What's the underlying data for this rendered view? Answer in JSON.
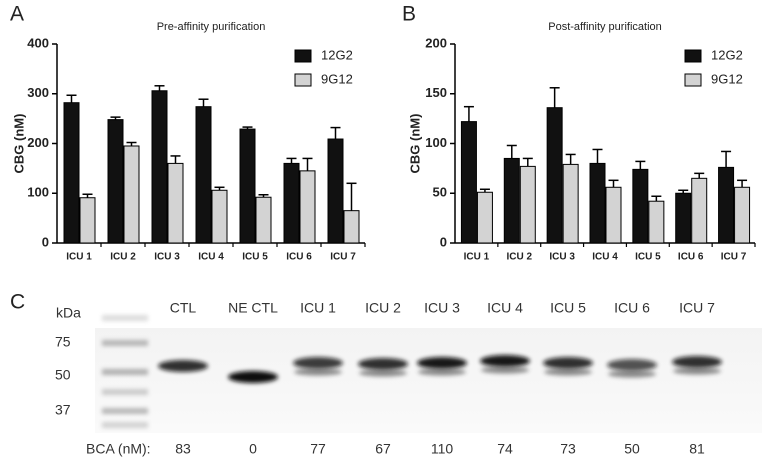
{
  "chart_data": [
    {
      "type": "bar",
      "panel": "A",
      "title": "Pre-affinity purification",
      "y_label": "CBG (nM)",
      "categories": [
        "ICU 1",
        "ICU 2",
        "ICU 3",
        "ICU 4",
        "ICU 5",
        "ICU 6",
        "ICU 7"
      ],
      "series": [
        {
          "name": "12G2",
          "color": "#111111",
          "values": [
            282,
            248,
            306,
            274,
            229,
            160,
            209
          ],
          "errors": [
            15,
            5,
            10,
            15,
            4,
            10,
            23
          ]
        },
        {
          "name": "9G12",
          "color": "#d3d3d3",
          "values": [
            91,
            195,
            160,
            106,
            92,
            145,
            65
          ],
          "errors": [
            7,
            7,
            15,
            6,
            5,
            25,
            55
          ]
        }
      ],
      "ylim": [
        0,
        400
      ],
      "yticks": [
        0,
        100,
        200,
        300,
        400
      ],
      "legend": "upper right"
    },
    {
      "type": "bar",
      "panel": "B",
      "title": "Post-affinity purification",
      "y_label": "CBG (nM)",
      "categories": [
        "ICU 1",
        "ICU 2",
        "ICU 3",
        "ICU 4",
        "ICU 5",
        "ICU 6",
        "ICU 7"
      ],
      "series": [
        {
          "name": "12G2",
          "color": "#111111",
          "values": [
            122,
            85,
            136,
            80,
            74,
            50,
            76
          ],
          "errors": [
            15,
            13,
            20,
            14,
            8,
            3,
            16
          ]
        },
        {
          "name": "9G12",
          "color": "#d3d3d3",
          "values": [
            51,
            77,
            79,
            56,
            42,
            65,
            56
          ],
          "errors": [
            3,
            8,
            10,
            7,
            5,
            5,
            7
          ]
        }
      ],
      "ylim": [
        0,
        200
      ],
      "yticks": [
        0,
        50,
        100,
        150,
        200
      ],
      "legend": "upper right"
    }
  ],
  "blot": {
    "panel": "C",
    "unit_label": "kDa",
    "markers": [
      75,
      50,
      37
    ],
    "lanes": [
      "CTL",
      "NE CTL",
      "ICU 1",
      "ICU 2",
      "ICU 3",
      "ICU 4",
      "ICU 5",
      "ICU 6",
      "ICU 7"
    ],
    "bca_label": "BCA (nM):",
    "bca_values": [
      83,
      0,
      77,
      67,
      110,
      74,
      73,
      50,
      81
    ]
  }
}
